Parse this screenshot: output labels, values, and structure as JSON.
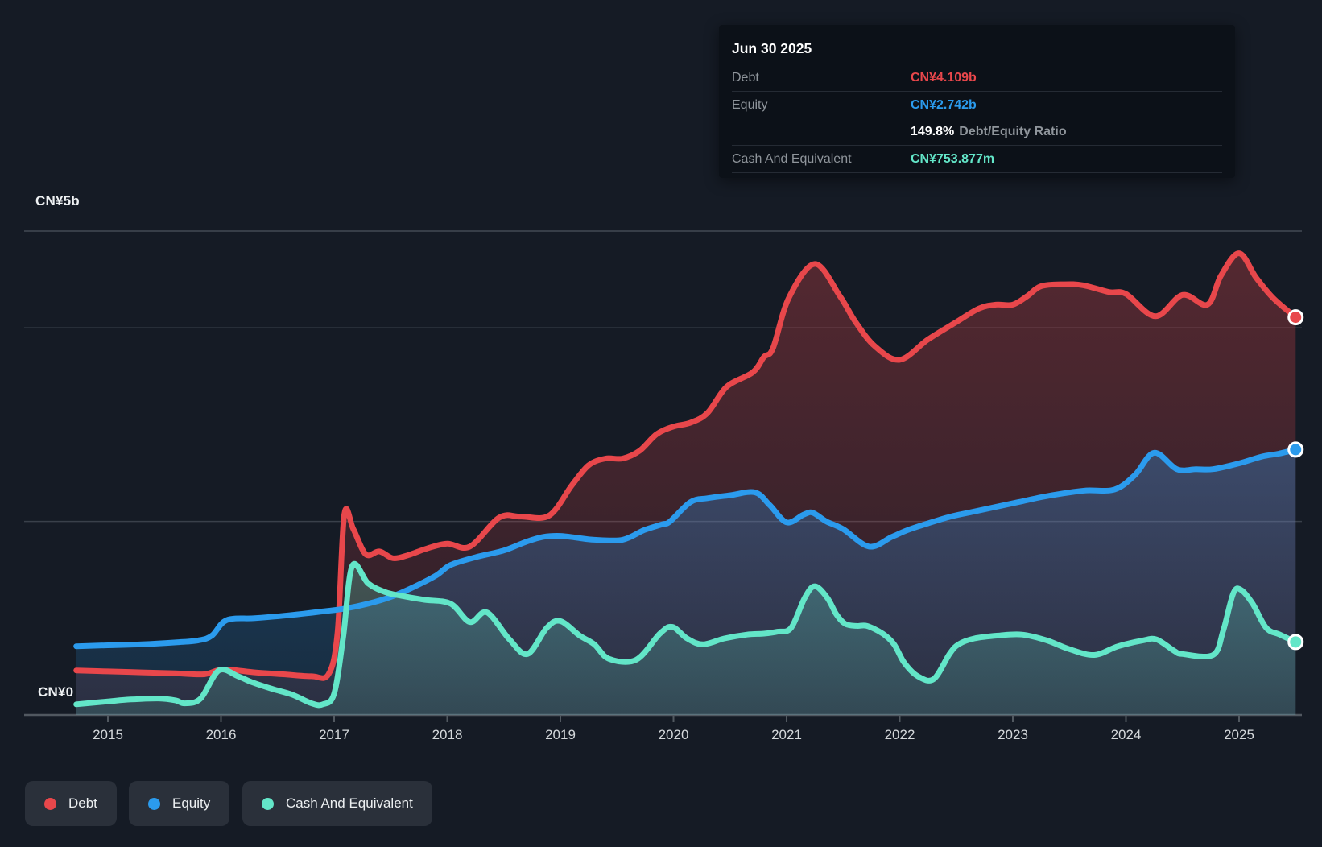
{
  "colors": {
    "background": "#151b25",
    "debt": "#e8474b",
    "equity": "#2b9bed",
    "cash": "#63e6c8",
    "grid": "#39404a",
    "grid_top": "#434a54",
    "axis": "#515860",
    "tick_label": "#d4d8db",
    "y_label": "#eef1f3",
    "tooltip_bg": "#0c1118",
    "tooltip_label": "#8f959b",
    "tooltip_divider": "#252b34",
    "legend_chip_bg": "#2a303a",
    "legend_text": "#eceff1",
    "marker_stroke": "#ffffff"
  },
  "tooltip": {
    "date": "Jun 30 2025",
    "debt_label": "Debt",
    "debt_value": "CN¥4.109b",
    "equity_label": "Equity",
    "equity_value": "CN¥2.742b",
    "ratio_value": "149.8%",
    "ratio_label": "Debt/Equity Ratio",
    "cash_label": "Cash And Equivalent",
    "cash_value": "CN¥753.877m"
  },
  "y_axis": {
    "top_label": "CN¥5b",
    "zero_label": "CN¥0"
  },
  "x_axis": {
    "years": [
      "2015",
      "2016",
      "2017",
      "2018",
      "2019",
      "2020",
      "2021",
      "2022",
      "2023",
      "2024",
      "2025"
    ]
  },
  "legend": {
    "items": [
      {
        "label": "Debt",
        "color": "#e8474b"
      },
      {
        "label": "Equity",
        "color": "#2b9bed"
      },
      {
        "label": "Cash And Equivalent",
        "color": "#63e6c8"
      }
    ]
  },
  "chart_data": {
    "type": "area",
    "title": "Debt, Equity and Cash history",
    "units": "CN¥ billions",
    "x_unit": "decimal year",
    "ylim": [
      0,
      5
    ],
    "x_range": [
      2014.72,
      2025.5
    ],
    "gridline_values_billions": [
      5,
      4,
      2
    ],
    "grid": true,
    "legend_position": "bottom-left",
    "last_point_markers": true,
    "series": [
      {
        "name": "Debt",
        "color": "#e8474b",
        "points": [
          [
            2014.72,
            0.46
          ],
          [
            2015.0,
            0.45
          ],
          [
            2015.3,
            0.44
          ],
          [
            2015.6,
            0.43
          ],
          [
            2015.85,
            0.42
          ],
          [
            2016.02,
            0.47
          ],
          [
            2016.3,
            0.44
          ],
          [
            2016.55,
            0.42
          ],
          [
            2016.8,
            0.4
          ],
          [
            2016.95,
            0.42
          ],
          [
            2017.03,
            0.85
          ],
          [
            2017.09,
            2.07
          ],
          [
            2017.17,
            1.92
          ],
          [
            2017.28,
            1.66
          ],
          [
            2017.4,
            1.69
          ],
          [
            2017.52,
            1.62
          ],
          [
            2017.65,
            1.65
          ],
          [
            2017.82,
            1.72
          ],
          [
            2018.0,
            1.77
          ],
          [
            2018.2,
            1.74
          ],
          [
            2018.46,
            2.04
          ],
          [
            2018.65,
            2.05
          ],
          [
            2018.9,
            2.06
          ],
          [
            2019.1,
            2.37
          ],
          [
            2019.25,
            2.58
          ],
          [
            2019.4,
            2.65
          ],
          [
            2019.55,
            2.65
          ],
          [
            2019.7,
            2.73
          ],
          [
            2019.85,
            2.9
          ],
          [
            2020.0,
            2.98
          ],
          [
            2020.15,
            3.02
          ],
          [
            2020.3,
            3.12
          ],
          [
            2020.47,
            3.39
          ],
          [
            2020.7,
            3.54
          ],
          [
            2020.8,
            3.7
          ],
          [
            2020.88,
            3.79
          ],
          [
            2021.02,
            4.31
          ],
          [
            2021.25,
            4.66
          ],
          [
            2021.47,
            4.33
          ],
          [
            2021.61,
            4.06
          ],
          [
            2021.78,
            3.81
          ],
          [
            2022.0,
            3.67
          ],
          [
            2022.25,
            3.88
          ],
          [
            2022.5,
            4.06
          ],
          [
            2022.7,
            4.2
          ],
          [
            2022.85,
            4.24
          ],
          [
            2023.0,
            4.24
          ],
          [
            2023.13,
            4.33
          ],
          [
            2023.25,
            4.43
          ],
          [
            2023.45,
            4.45
          ],
          [
            2023.62,
            4.44
          ],
          [
            2023.85,
            4.37
          ],
          [
            2024.0,
            4.35
          ],
          [
            2024.26,
            4.12
          ],
          [
            2024.5,
            4.34
          ],
          [
            2024.72,
            4.24
          ],
          [
            2024.84,
            4.54
          ],
          [
            2025.0,
            4.77
          ],
          [
            2025.15,
            4.52
          ],
          [
            2025.3,
            4.31
          ],
          [
            2025.5,
            4.109
          ]
        ]
      },
      {
        "name": "Equity",
        "color": "#2b9bed",
        "points": [
          [
            2014.72,
            0.71
          ],
          [
            2015.0,
            0.72
          ],
          [
            2015.3,
            0.73
          ],
          [
            2015.6,
            0.75
          ],
          [
            2015.8,
            0.77
          ],
          [
            2015.92,
            0.82
          ],
          [
            2016.05,
            0.98
          ],
          [
            2016.3,
            1.0
          ],
          [
            2016.6,
            1.03
          ],
          [
            2016.9,
            1.07
          ],
          [
            2017.1,
            1.1
          ],
          [
            2017.3,
            1.15
          ],
          [
            2017.5,
            1.22
          ],
          [
            2017.7,
            1.32
          ],
          [
            2017.9,
            1.44
          ],
          [
            2018.03,
            1.55
          ],
          [
            2018.25,
            1.63
          ],
          [
            2018.5,
            1.7
          ],
          [
            2018.7,
            1.79
          ],
          [
            2018.85,
            1.84
          ],
          [
            2019.0,
            1.85
          ],
          [
            2019.15,
            1.83
          ],
          [
            2019.3,
            1.81
          ],
          [
            2019.55,
            1.81
          ],
          [
            2019.74,
            1.91
          ],
          [
            2019.9,
            1.97
          ],
          [
            2019.97,
            2.0
          ],
          [
            2020.15,
            2.2
          ],
          [
            2020.3,
            2.24
          ],
          [
            2020.5,
            2.27
          ],
          [
            2020.72,
            2.3
          ],
          [
            2020.85,
            2.17
          ],
          [
            2021.0,
            1.99
          ],
          [
            2021.15,
            2.07
          ],
          [
            2021.23,
            2.09
          ],
          [
            2021.35,
            2.0
          ],
          [
            2021.5,
            1.92
          ],
          [
            2021.73,
            1.74
          ],
          [
            2021.93,
            1.84
          ],
          [
            2022.07,
            1.91
          ],
          [
            2022.25,
            1.98
          ],
          [
            2022.45,
            2.05
          ],
          [
            2022.65,
            2.1
          ],
          [
            2022.85,
            2.15
          ],
          [
            2023.05,
            2.2
          ],
          [
            2023.25,
            2.25
          ],
          [
            2023.45,
            2.29
          ],
          [
            2023.65,
            2.32
          ],
          [
            2023.9,
            2.33
          ],
          [
            2024.08,
            2.48
          ],
          [
            2024.25,
            2.71
          ],
          [
            2024.45,
            2.54
          ],
          [
            2024.62,
            2.54
          ],
          [
            2024.77,
            2.54
          ],
          [
            2025.0,
            2.6
          ],
          [
            2025.2,
            2.67
          ],
          [
            2025.35,
            2.7
          ],
          [
            2025.5,
            2.742
          ]
        ]
      },
      {
        "name": "Cash And Equivalent",
        "color": "#63e6c8",
        "points": [
          [
            2014.72,
            0.11
          ],
          [
            2015.0,
            0.14
          ],
          [
            2015.2,
            0.16
          ],
          [
            2015.45,
            0.17
          ],
          [
            2015.6,
            0.15
          ],
          [
            2015.68,
            0.12
          ],
          [
            2015.82,
            0.17
          ],
          [
            2015.98,
            0.46
          ],
          [
            2016.15,
            0.4
          ],
          [
            2016.27,
            0.34
          ],
          [
            2016.45,
            0.27
          ],
          [
            2016.63,
            0.21
          ],
          [
            2016.8,
            0.12
          ],
          [
            2016.9,
            0.11
          ],
          [
            2017.0,
            0.22
          ],
          [
            2017.08,
            0.8
          ],
          [
            2017.16,
            1.54
          ],
          [
            2017.3,
            1.36
          ],
          [
            2017.45,
            1.27
          ],
          [
            2017.6,
            1.23
          ],
          [
            2017.8,
            1.19
          ],
          [
            2018.03,
            1.15
          ],
          [
            2018.2,
            0.96
          ],
          [
            2018.35,
            1.06
          ],
          [
            2018.55,
            0.78
          ],
          [
            2018.71,
            0.63
          ],
          [
            2018.88,
            0.9
          ],
          [
            2019.0,
            0.97
          ],
          [
            2019.17,
            0.82
          ],
          [
            2019.3,
            0.73
          ],
          [
            2019.43,
            0.58
          ],
          [
            2019.67,
            0.57
          ],
          [
            2019.88,
            0.84
          ],
          [
            2019.99,
            0.91
          ],
          [
            2020.12,
            0.79
          ],
          [
            2020.26,
            0.73
          ],
          [
            2020.45,
            0.79
          ],
          [
            2020.65,
            0.83
          ],
          [
            2020.8,
            0.84
          ],
          [
            2020.92,
            0.86
          ],
          [
            2021.04,
            0.9
          ],
          [
            2021.16,
            1.21
          ],
          [
            2021.25,
            1.33
          ],
          [
            2021.36,
            1.21
          ],
          [
            2021.44,
            1.04
          ],
          [
            2021.52,
            0.94
          ],
          [
            2021.62,
            0.92
          ],
          [
            2021.71,
            0.92
          ],
          [
            2021.85,
            0.84
          ],
          [
            2021.95,
            0.73
          ],
          [
            2022.04,
            0.54
          ],
          [
            2022.16,
            0.4
          ],
          [
            2022.3,
            0.37
          ],
          [
            2022.44,
            0.63
          ],
          [
            2022.52,
            0.73
          ],
          [
            2022.66,
            0.79
          ],
          [
            2022.87,
            0.82
          ],
          [
            2023.08,
            0.83
          ],
          [
            2023.3,
            0.77
          ],
          [
            2023.5,
            0.68
          ],
          [
            2023.72,
            0.62
          ],
          [
            2023.93,
            0.71
          ],
          [
            2024.15,
            0.77
          ],
          [
            2024.27,
            0.78
          ],
          [
            2024.43,
            0.66
          ],
          [
            2024.5,
            0.63
          ],
          [
            2024.77,
            0.62
          ],
          [
            2024.86,
            0.87
          ],
          [
            2024.95,
            1.26
          ],
          [
            2025.02,
            1.29
          ],
          [
            2025.12,
            1.15
          ],
          [
            2025.24,
            0.9
          ],
          [
            2025.36,
            0.83
          ],
          [
            2025.5,
            0.754
          ]
        ]
      }
    ]
  }
}
